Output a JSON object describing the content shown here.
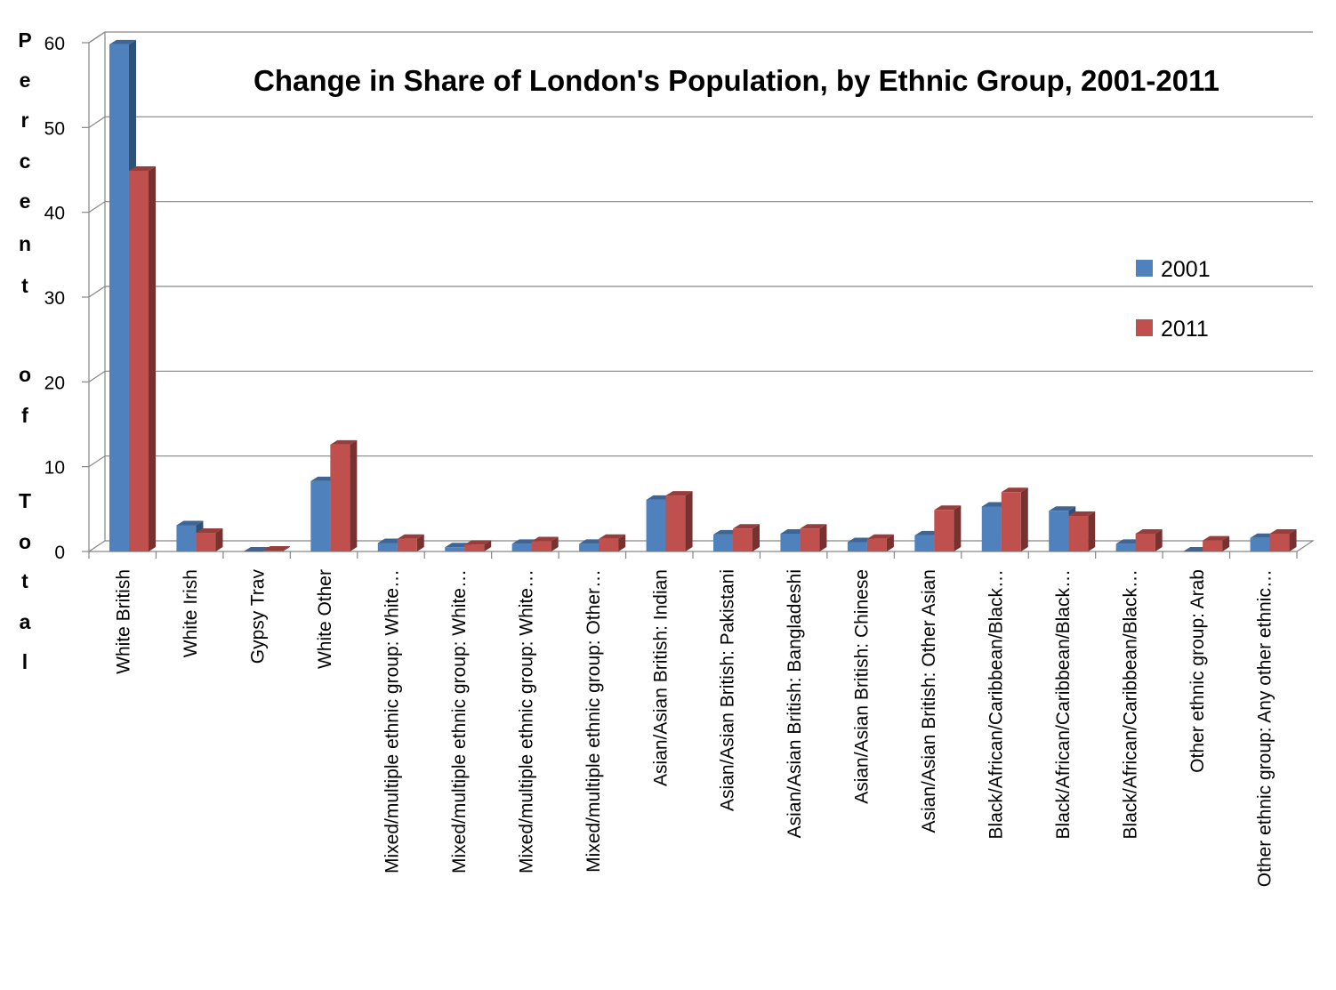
{
  "chart_data": {
    "type": "bar",
    "title": "Change in Share of London's Population, by Ethnic Group, 2001-2011",
    "ylabel": "Percent of Total",
    "xlabel": "",
    "ylim": [
      0,
      60
    ],
    "yticks": [
      "0",
      "10",
      "20",
      "30",
      "40",
      "50",
      "60"
    ],
    "grid": true,
    "legend_position": "right",
    "categories": [
      "White British",
      "White Irish",
      "Gypsy Trav",
      "White Other",
      "Mixed/multiple ethnic group: White…",
      "Mixed/multiple ethnic group: White…",
      "Mixed/multiple ethnic group: White…",
      "Mixed/multiple ethnic group: Other…",
      "Asian/Asian British: Indian",
      "Asian/Asian British: Pakistani",
      "Asian/Asian British: Bangladeshi",
      "Asian/Asian British: Chinese",
      "Asian/Asian British: Other Asian",
      "Black/African/Caribbean/Black…",
      "Black/African/Caribbean/Black…",
      "Black/African/Caribbean/Black…",
      "Other ethnic group: Arab",
      "Other ethnic group: Any other ethnic…"
    ],
    "series": [
      {
        "name": "2001",
        "color": "#4F81BD",
        "values": [
          59.8,
          3.1,
          0,
          8.3,
          1.0,
          0.5,
          0.9,
          0.9,
          6.1,
          2.0,
          2.1,
          1.1,
          1.9,
          5.3,
          4.8,
          0.9,
          0,
          1.6
        ]
      },
      {
        "name": "2011",
        "color": "#C0504D",
        "values": [
          44.9,
          2.2,
          0.1,
          12.6,
          1.5,
          0.8,
          1.2,
          1.5,
          6.6,
          2.7,
          2.7,
          1.5,
          4.9,
          7.0,
          4.2,
          2.1,
          1.3,
          2.1
        ]
      }
    ]
  }
}
